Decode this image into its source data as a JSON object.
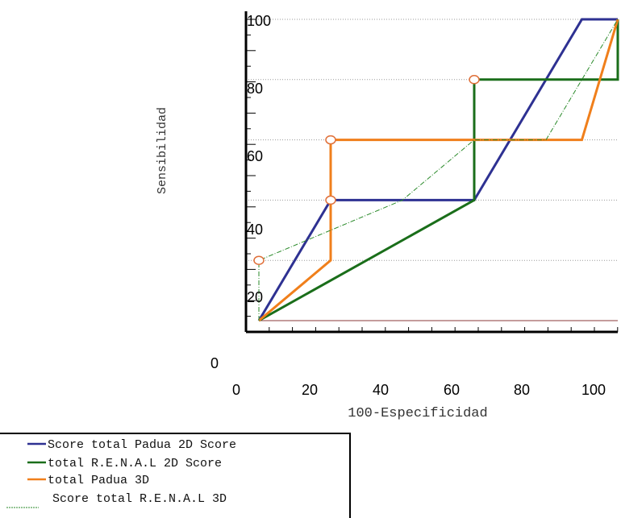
{
  "chart_data": {
    "type": "line",
    "xlabel": "100-Especificidad",
    "ylabel": "Sensibilidad",
    "origin_label": "0",
    "x_ticks": [
      "0",
      "20",
      "40",
      "60",
      "80",
      "100"
    ],
    "y_ticks": [
      "20",
      "40",
      "60",
      "80",
      "100"
    ],
    "xlim": [
      0,
      100
    ],
    "ylim": [
      0,
      100
    ],
    "grid": "horizontal-dotted",
    "legend_placement": "bottom-left",
    "series": [
      {
        "name": "Score total Padua 2D Score",
        "color": "#2e3192",
        "style": "solid",
        "points": [
          [
            0,
            0
          ],
          [
            20,
            40
          ],
          [
            60,
            40
          ],
          [
            90,
            100
          ],
          [
            100,
            100
          ]
        ]
      },
      {
        "name": "total R.E.N.A.L 2D Score",
        "color": "#1a6e1a",
        "style": "solid",
        "points": [
          [
            0,
            0
          ],
          [
            60,
            40
          ],
          [
            60,
            80
          ],
          [
            100,
            80
          ],
          [
            100,
            100
          ]
        ]
      },
      {
        "name": "total Padua 3D",
        "color": "#f07f1b",
        "style": "solid",
        "points": [
          [
            0,
            0
          ],
          [
            20,
            20
          ],
          [
            20,
            60
          ],
          [
            90,
            60
          ],
          [
            100,
            100
          ]
        ]
      },
      {
        "name": "Score total R.E.N.A.L 3D",
        "color": "#2a8a2a",
        "style": "dashdot",
        "points": [
          [
            0,
            0
          ],
          [
            0,
            20
          ],
          [
            40,
            40
          ],
          [
            60,
            60
          ],
          [
            80,
            60
          ],
          [
            100,
            100
          ]
        ]
      }
    ],
    "markers": [
      [
        0,
        20
      ],
      [
        20,
        40
      ],
      [
        20,
        60
      ],
      [
        60,
        80
      ]
    ],
    "marker_color": "#e0703a"
  }
}
